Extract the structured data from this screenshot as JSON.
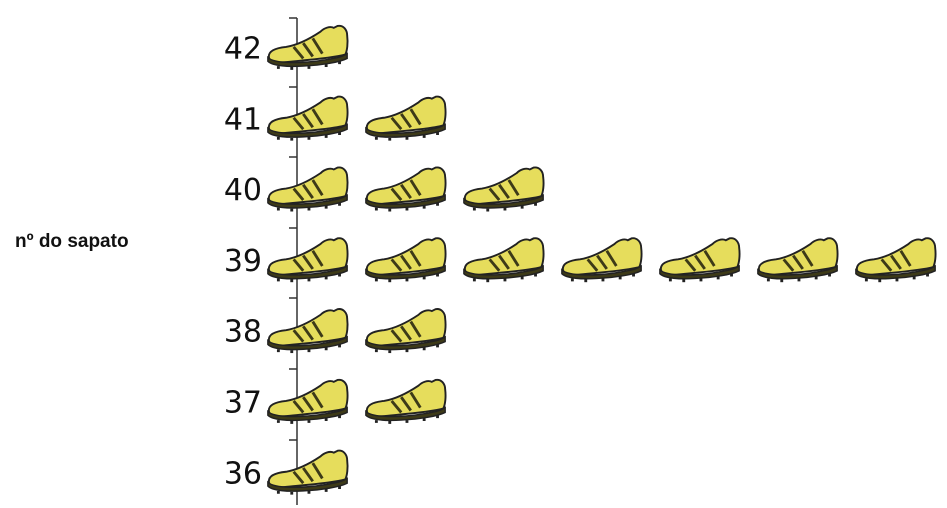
{
  "chart_data": {
    "type": "pictograph",
    "y_label": "nº do sapato",
    "categories": [
      "42",
      "41",
      "40",
      "39",
      "38",
      "37",
      "36"
    ],
    "values": [
      1,
      2,
      3,
      7,
      2,
      2,
      1
    ],
    "color": "#e6dd5c"
  }
}
